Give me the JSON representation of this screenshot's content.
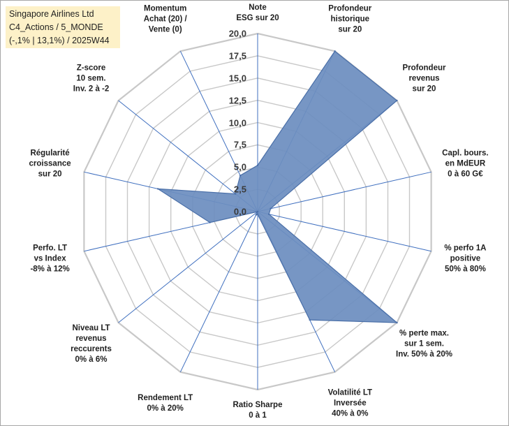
{
  "chart_data": {
    "type": "radar",
    "title": [
      "Singapore Airlines Ltd",
      "C4_Actions / 5_MONDE",
      "(-,1% | 13,1%) / 2025W44"
    ],
    "rmax": 20,
    "ticks": [
      "0,0",
      "2,5",
      "5,0",
      "7,5",
      "10,0",
      "12,5",
      "15,0",
      "17,5",
      "20,0"
    ],
    "axes": [
      {
        "label": [
          "Note",
          "ESG sur 20"
        ],
        "value": 5.2
      },
      {
        "label": [
          "Profondeur",
          "historique",
          "sur 20"
        ],
        "value": 20
      },
      {
        "label": [
          "Profondeur",
          "revenus",
          "sur 20"
        ],
        "value": 20
      },
      {
        "label": [
          "Capl. bours.",
          "en MdEUR",
          "0 à 60 G€"
        ],
        "value": 1.5
      },
      {
        "label": [
          "% perfo 1A",
          "positive",
          "50% à 80%"
        ],
        "value": 1.3
      },
      {
        "label": [
          "% perte max.",
          "sur 1 sem.",
          "Inv. 50% à 20%"
        ],
        "value": 20
      },
      {
        "label": [
          "Volatilité LT",
          "Inversée",
          "40% à 0%"
        ],
        "value": 13.5
      },
      {
        "label": [
          "Ratio Sharpe",
          "0 à 1"
        ],
        "value": 0.3
      },
      {
        "label": [
          "Rendement LT",
          "0% à 20%"
        ],
        "value": 0.4
      },
      {
        "label": [
          "Niveau LT",
          "revenus",
          "reccurents",
          "0% à 6%"
        ],
        "value": 0
      },
      {
        "label": [
          "Perfo. LT",
          "vs Index",
          "-8% à 12%"
        ],
        "value": 5.5
      },
      {
        "label": [
          "Régularité",
          "croissance",
          "sur 20"
        ],
        "value": 11.5
      },
      {
        "label": [
          "Z-score",
          "10 sem.",
          "Inv. 2 à -2"
        ],
        "value": 3.2
      },
      {
        "label": [
          "Momentum",
          "Achat (20) /",
          "Vente (0)"
        ],
        "value": 4.5
      }
    ]
  },
  "colors": {
    "fill": "#6d8ebf",
    "stroke": "#4a6fa8",
    "grid": "#c8c8c8",
    "spoke": "#3f6fbf",
    "title_bg": "#fdf1c8"
  }
}
